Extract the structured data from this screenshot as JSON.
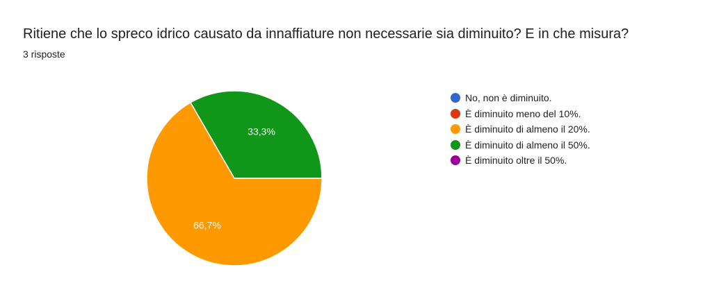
{
  "question": {
    "title": "Ritiene che lo spreco idrico causato da innaffiature non necessarie sia diminuito? E in che misura?",
    "responses": "3 risposte"
  },
  "chart_data": {
    "type": "pie",
    "title": "Ritiene che lo spreco idrico causato da innaffiature non necessarie sia diminuito? E in che misura?",
    "subtitle": "3 risposte",
    "categories": [
      "No, non è diminuito.",
      "È diminuito meno del 10%.",
      "È diminuito di almeno il 20%.",
      "È diminuito di almeno il 50%.",
      "È diminuito oltre il 50%."
    ],
    "values": [
      0,
      0,
      2,
      1,
      0
    ],
    "percent_labels": [
      "",
      "",
      "66,7%",
      "33,3%",
      ""
    ],
    "colors": [
      "#3366cc",
      "#dc3912",
      "#ff9900",
      "#109618",
      "#990099"
    ],
    "legend_position": "right"
  }
}
